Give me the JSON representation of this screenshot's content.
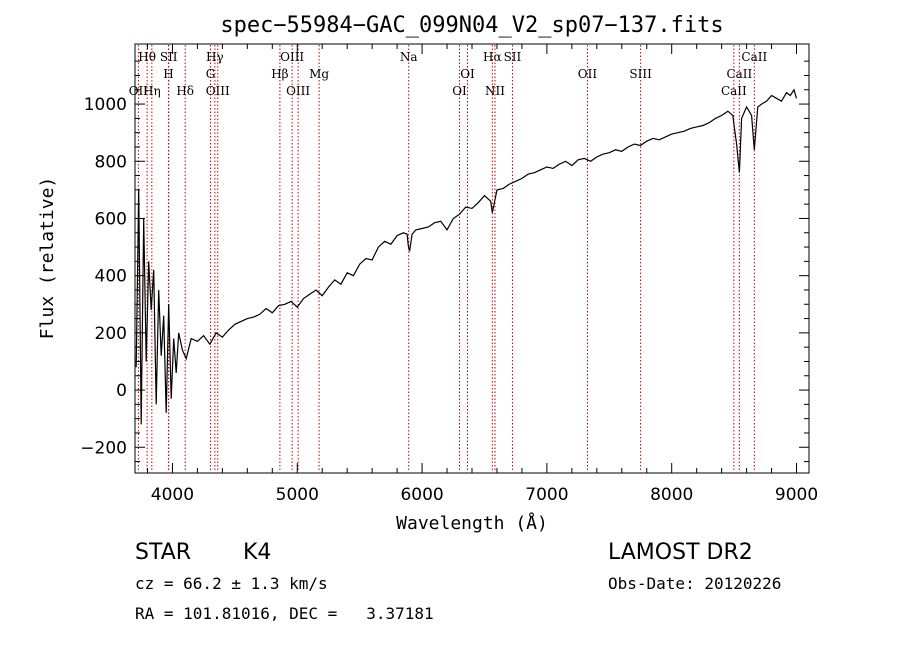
{
  "chart_data": {
    "type": "line",
    "title": "spec−55984−GAC_099N04_V2_sp07−137.fits",
    "xlabel": "Wavelength (Å)",
    "ylabel": "Flux (relative)",
    "xlim": [
      3700,
      9100
    ],
    "ylim": [
      -290,
      1210
    ],
    "xticks": [
      4000,
      5000,
      6000,
      7000,
      8000,
      9000
    ],
    "xtick_labels": [
      "4000",
      "5000",
      "6000",
      "7000",
      "8000",
      "9000"
    ],
    "yticks": [
      -200,
      0,
      200,
      400,
      600,
      800,
      1000
    ],
    "ytick_labels": [
      "−200",
      "0",
      "200",
      "400",
      "600",
      "800",
      "1000"
    ],
    "grid": false,
    "line_color": "#000000",
    "marker_color": "#cc0000",
    "series": [
      {
        "x": [
          3710,
          3730,
          3750,
          3770,
          3790,
          3810,
          3830,
          3850,
          3870,
          3890,
          3910,
          3930,
          3950,
          3970,
          3990,
          4010,
          4030,
          4050,
          4080,
          4110,
          4150,
          4200,
          4250,
          4300,
          4350,
          4400,
          4450,
          4500,
          4550,
          4600,
          4650,
          4700,
          4750,
          4800,
          4850,
          4900,
          4950,
          5000,
          5050,
          5100,
          5150,
          5200,
          5250,
          5300,
          5350,
          5400,
          5450,
          5500,
          5550,
          5600,
          5650,
          5700,
          5750,
          5800,
          5850,
          5880,
          5890,
          5900,
          5920,
          5950,
          6000,
          6050,
          6100,
          6150,
          6200,
          6250,
          6300,
          6350,
          6400,
          6450,
          6500,
          6550,
          6563,
          6600,
          6650,
          6700,
          6750,
          6800,
          6850,
          6900,
          6950,
          7000,
          7050,
          7100,
          7150,
          7200,
          7250,
          7300,
          7350,
          7400,
          7450,
          7500,
          7550,
          7600,
          7650,
          7700,
          7750,
          7800,
          7850,
          7900,
          7950,
          8000,
          8050,
          8100,
          8150,
          8200,
          8250,
          8300,
          8350,
          8400,
          8450,
          8490,
          8498,
          8520,
          8542,
          8560,
          8600,
          8640,
          8662,
          8690,
          8720,
          8760,
          8800,
          8840,
          8880,
          8920,
          8950,
          8980,
          9000
        ],
        "y": [
          80,
          700,
          -120,
          600,
          100,
          450,
          280,
          420,
          -50,
          350,
          120,
          260,
          -80,
          300,
          -30,
          180,
          60,
          200,
          140,
          110,
          180,
          170,
          190,
          160,
          200,
          185,
          210,
          230,
          240,
          250,
          255,
          265,
          285,
          270,
          295,
          300,
          310,
          290,
          320,
          335,
          350,
          330,
          360,
          385,
          370,
          410,
          400,
          440,
          460,
          455,
          500,
          520,
          510,
          540,
          550,
          545,
          505,
          485,
          545,
          560,
          565,
          570,
          585,
          590,
          560,
          600,
          615,
          640,
          635,
          655,
          680,
          660,
          620,
          700,
          705,
          720,
          730,
          740,
          755,
          760,
          770,
          780,
          775,
          790,
          800,
          785,
          805,
          810,
          800,
          815,
          825,
          830,
          840,
          835,
          850,
          860,
          855,
          870,
          880,
          875,
          885,
          895,
          900,
          905,
          915,
          920,
          925,
          935,
          950,
          960,
          975,
          960,
          930,
          860,
          760,
          950,
          990,
          960,
          840,
          990,
          1000,
          1010,
          1030,
          1020,
          1010,
          1040,
          1030,
          1050,
          1020
        ]
      }
    ],
    "line_markers": [
      {
        "label": "OⅠⅠ",
        "x": 3727,
        "row": 3
      },
      {
        "label": "Hθ",
        "x": 3797,
        "row": 1
      },
      {
        "label": "Hη",
        "x": 3835,
        "row": 3
      },
      {
        "label": "SⅠⅠ",
        "x": 3970,
        "row": 1
      },
      {
        "label": "H",
        "x": 3968,
        "row": 2
      },
      {
        "label": "Hδ",
        "x": 4102,
        "row": 3
      },
      {
        "label": "Hγ",
        "x": 4340,
        "row": 1
      },
      {
        "label": "G",
        "x": 4305,
        "row": 2
      },
      {
        "label": "OⅠⅠⅠ",
        "x": 4363,
        "row": 3
      },
      {
        "label": "OⅠⅠⅠ",
        "x": 4959,
        "row": 1
      },
      {
        "label": "Hβ",
        "x": 4861,
        "row": 2
      },
      {
        "label": "OⅠⅠⅠ",
        "x": 5007,
        "row": 3
      },
      {
        "label": "Mg",
        "x": 5175,
        "row": 2
      },
      {
        "label": "Na",
        "x": 5893,
        "row": 1
      },
      {
        "label": "OⅠ",
        "x": 6364,
        "row": 2
      },
      {
        "label": "OⅠ",
        "x": 6300,
        "row": 3
      },
      {
        "label": "Hα",
        "x": 6563,
        "row": 1
      },
      {
        "label": "NⅠⅠ",
        "x": 6584,
        "row": 3
      },
      {
        "label": "SⅠⅠ",
        "x": 6724,
        "row": 1
      },
      {
        "label": "OⅠⅠ",
        "x": 7325,
        "row": 2
      },
      {
        "label": "SⅠⅠⅠ",
        "x": 7751,
        "row": 2
      },
      {
        "label": "CaⅠⅠ",
        "x": 8662,
        "row": 1
      },
      {
        "label": "CaⅠⅠ",
        "x": 8542,
        "row": 2
      },
      {
        "label": "CaⅠⅠ",
        "x": 8498,
        "row": 3
      }
    ]
  },
  "footer": {
    "class_label": "STAR",
    "subclass_label": "K4",
    "survey_label": "LAMOST DR2",
    "redshift_line": "cz = 66.2 ± 1.3 km/s",
    "obs_date_line": "Obs-Date: 20120226",
    "coords_line": "RA = 101.81016, DEC =   3.37181"
  }
}
